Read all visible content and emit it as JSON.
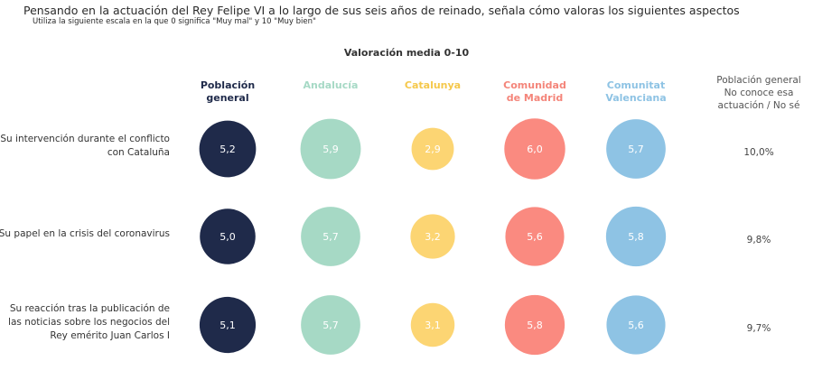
{
  "header": {
    "title": "Pensando en la actuación del Rey Felipe VI a lo largo de sus seis años de reinado, señala cómo valoras los siguientes aspectos",
    "subtitle": "Utiliza la siguiente escala en la que 0 significa \"Muy mal\" y 10 \"Muy bien\""
  },
  "chart_data": {
    "type": "bubble-table",
    "title": "Valoración media 0-10",
    "categories": [
      "Su intervención durante el conflicto con Cataluña",
      "Su papel en la crisis del coronavirus",
      "Su reacción tras la publicación de las noticias sobre los negocios del Rey emérito Juan Carlos I"
    ],
    "category_lines": [
      [
        "Su intervención durante el conflicto",
        "con Cataluña"
      ],
      [
        "Su papel en la crisis del coronavirus"
      ],
      [
        "Su reacción tras la publicación de",
        "las noticias sobre los negocios del",
        "Rey emérito Juan Carlos I"
      ]
    ],
    "series": [
      {
        "name": "Población general",
        "lines": [
          "Población",
          "general"
        ],
        "color": "#1f2a4a",
        "header_color": "#1f2a4a",
        "values": [
          5.2,
          5.0,
          5.1
        ],
        "labels": [
          "5,2",
          "5,0",
          "5,1"
        ]
      },
      {
        "name": "Andalucía",
        "lines": [
          "Andalucía"
        ],
        "color": "#a6d9c5",
        "header_color": "#a6d9c5",
        "values": [
          5.9,
          5.7,
          5.7
        ],
        "labels": [
          "5,9",
          "5,7",
          "5,7"
        ]
      },
      {
        "name": "Catalunya",
        "lines": [
          "Catalunya"
        ],
        "color": "#fcd573",
        "header_color": "#f5c84b",
        "values": [
          2.9,
          3.2,
          3.1
        ],
        "labels": [
          "2,9",
          "3,2",
          "3,1"
        ]
      },
      {
        "name": "Comunidad de Madrid",
        "lines": [
          "Comunidad",
          "de Madrid"
        ],
        "color": "#fa8a80",
        "header_color": "#f4857a",
        "values": [
          6.0,
          5.6,
          5.8
        ],
        "labels": [
          "6,0",
          "5,6",
          "5,8"
        ]
      },
      {
        "name": "Comunitat Valenciana",
        "lines": [
          "Comunitat",
          "Valenciana"
        ],
        "color": "#8ec3e4",
        "header_color": "#8ec3e4",
        "values": [
          5.7,
          5.8,
          5.6
        ],
        "labels": [
          "5,7",
          "5,8",
          "5,6"
        ]
      }
    ],
    "no_conoce": {
      "header_lines": [
        "Población general",
        "No conoce esa",
        "actuación / No sé"
      ],
      "values": [
        10.0,
        9.8,
        9.7
      ],
      "labels": [
        "10,0%",
        "9,8%",
        "9,7%"
      ]
    },
    "value_range": [
      0,
      10
    ]
  }
}
